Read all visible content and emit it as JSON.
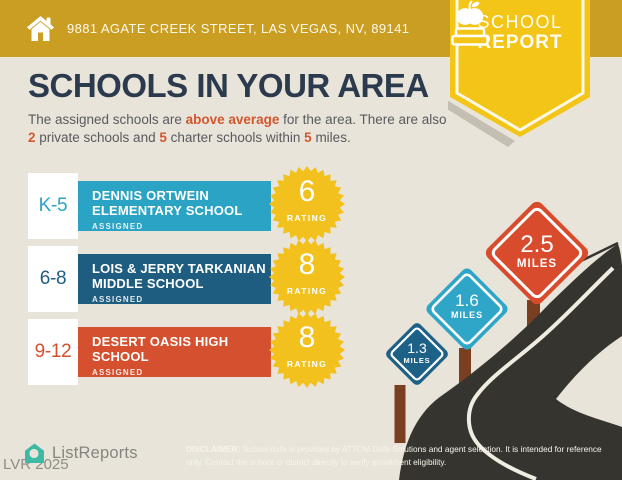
{
  "header": {
    "address": "9881 AGATE CREEK STREET, LAS VEGAS, NV, 89141"
  },
  "badge": {
    "line1": "SCHOOL",
    "line2": "REPORT"
  },
  "title": "SCHOOLS IN YOUR AREA",
  "intro": {
    "pre": "The assigned schools are ",
    "highlight": "above average",
    "mid1": " for the area. There are also ",
    "num_private": "2",
    "mid2": " private schools and ",
    "num_charter": "5",
    "mid3": " charter schools within ",
    "num_miles": "5",
    "post": " miles."
  },
  "schools": [
    {
      "grades": "K-5",
      "name_line1": "DENNIS ORTWEIN",
      "name_line2": "ELEMENTARY SCHOOL",
      "status": "ASSIGNED",
      "rating": "6",
      "rating_label": "RATING",
      "color": "#2aa3c5"
    },
    {
      "grades": "6-8",
      "name_line1": "LOIS & JERRY TARKANIAN",
      "name_line2": "MIDDLE SCHOOL",
      "status": "ASSIGNED",
      "rating": "8",
      "rating_label": "RATING",
      "color": "#1f5d80"
    },
    {
      "grades": "9-12",
      "name_line1": "DESERT OASIS HIGH",
      "name_line2": "SCHOOL",
      "status": "ASSIGNED",
      "rating": "8",
      "rating_label": "RATING",
      "color": "#d4502e"
    }
  ],
  "distance_signs": [
    {
      "distance": "1.3",
      "unit": "MILES",
      "color": "#1e6186"
    },
    {
      "distance": "1.6",
      "unit": "MILES",
      "color": "#2fa6c8"
    },
    {
      "distance": "2.5",
      "unit": "MILES",
      "color": "#d84b2c"
    }
  ],
  "footer": {
    "logo_text": "ListReports",
    "watermark": "LVR 2025",
    "disclaimer_bold": "DISCLAIMER:",
    "disclaimer_rest": " School data is provided by ATTOM Data Solutions and agent selection. It is intended for reference only. Contact the school or district directly to verify enrollment eligibility."
  },
  "colors": {
    "background": "#e9e4da",
    "header_bar": "#c99e23",
    "badge_yellow": "#f3c516",
    "starburst_yellow": "#f2c11d",
    "title_navy": "#2b3b4d",
    "accent_orange": "#d2572f",
    "road": "#36342f",
    "post_brown": "#7a3e20",
    "logo_teal": "#3db9a5"
  }
}
